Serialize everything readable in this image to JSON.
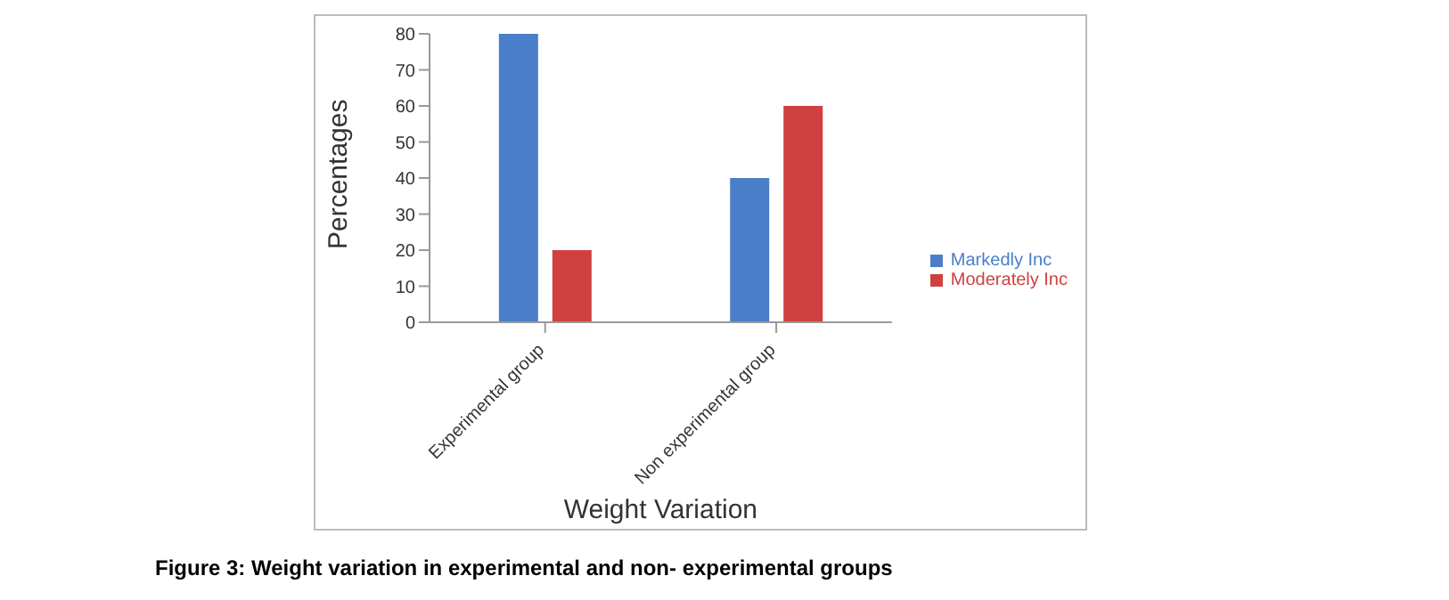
{
  "chart_data": {
    "type": "bar",
    "xlabel": "Weight Variation",
    "ylabel": "Percentages",
    "categories": [
      "Experimental group",
      "Non experimental group"
    ],
    "series": [
      {
        "name": "Markedly Inc",
        "color": "#4a7ec9",
        "values": [
          80,
          40
        ]
      },
      {
        "name": "Moderately Inc",
        "color": "#d04040",
        "values": [
          20,
          60
        ]
      }
    ],
    "ylim": [
      0,
      80
    ],
    "yticks": [
      0,
      10,
      20,
      30,
      40,
      50,
      60,
      70,
      80
    ],
    "grid": false,
    "legend": "right",
    "annotations": [
      "Figure 3: Weight variation in experimental and non- experimental groups"
    ]
  }
}
